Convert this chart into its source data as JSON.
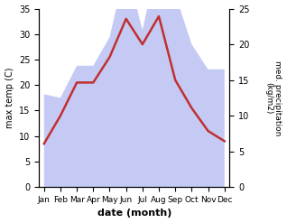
{
  "months": [
    "Jan",
    "Feb",
    "Mar",
    "Apr",
    "May",
    "Jun",
    "Jul",
    "Aug",
    "Sep",
    "Oct",
    "Nov",
    "Dec"
  ],
  "temp": [
    8.5,
    14.0,
    20.5,
    20.5,
    25.5,
    33.0,
    28.0,
    33.5,
    21.0,
    15.5,
    11.0,
    9.0
  ],
  "precip": [
    13.0,
    12.5,
    17.0,
    17.0,
    21.0,
    31.0,
    22.0,
    32.5,
    27.0,
    20.0,
    16.5,
    16.5
  ],
  "temp_color": "#c03030",
  "precip_fill_color": "#c5caf5",
  "temp_ylim": [
    0,
    35
  ],
  "precip_ylim": [
    0,
    25
  ],
  "xlabel": "date (month)",
  "ylabel_left": "max temp (C)",
  "ylabel_right": "med. precipitation\n(kg/m2)",
  "temp_yticks": [
    0,
    5,
    10,
    15,
    20,
    25,
    30,
    35
  ],
  "precip_yticks": [
    0,
    5,
    10,
    15,
    20,
    25
  ],
  "background_color": "#ffffff"
}
